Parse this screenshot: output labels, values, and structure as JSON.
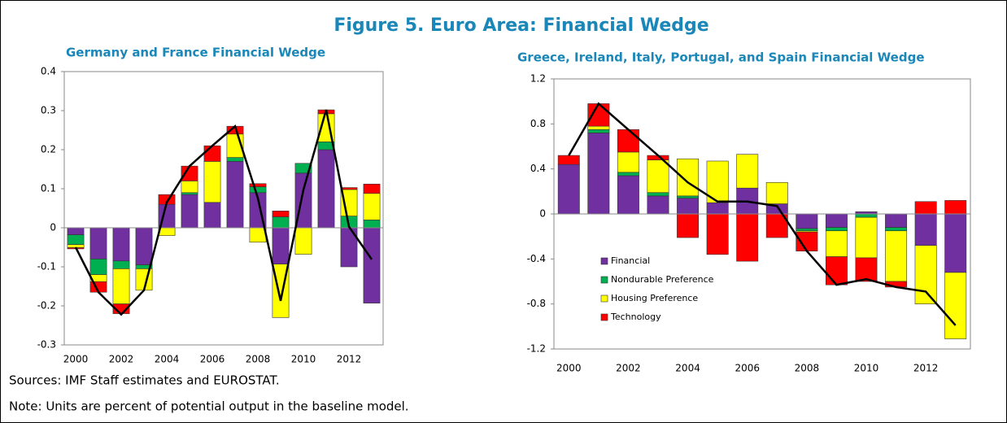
{
  "title": "Figure 5. Euro Area: Financial Wedge",
  "sources": "Sources: IMF Staff estimates and EUROSTAT.",
  "note": "Note: Units are percent of potential output in the baseline model.",
  "chart_data": [
    {
      "type": "bar",
      "stacked": true,
      "title": "Germany and France Financial Wedge",
      "categories": [
        "2000",
        null,
        "2002",
        null,
        "2004",
        null,
        "2006",
        null,
        "2008",
        null,
        "2010",
        null,
        "2012",
        null
      ],
      "series": [
        {
          "color": "#7030a0",
          "values": [
            -0.018,
            -0.08,
            -0.085,
            -0.095,
            0.06,
            0.085,
            0.065,
            0.17,
            0.09,
            -0.093,
            0.14,
            0.2,
            -0.1,
            -0.193
          ]
        },
        {
          "color": "#00b050",
          "values": [
            -0.025,
            -0.04,
            -0.02,
            -0.01,
            0,
            0.005,
            0,
            0.01,
            0.015,
            0.028,
            0.025,
            0.02,
            0.03,
            0.02
          ]
        },
        {
          "color": "#ffff00",
          "values": [
            -0.008,
            -0.018,
            -0.09,
            -0.055,
            -0.02,
            0.03,
            0.105,
            0.06,
            -0.037,
            -0.137,
            -0.068,
            0.072,
            0.068,
            0.068
          ]
        },
        {
          "color": "#ff0000",
          "values": [
            -0.003,
            -0.027,
            -0.025,
            0,
            0.025,
            0.038,
            0.04,
            0.02,
            0.008,
            0.015,
            0,
            0.01,
            0.005,
            0.024
          ]
        }
      ],
      "line": {
        "color": "#000000",
        "values": [
          -0.05,
          -0.165,
          -0.222,
          -0.16,
          0.065,
          0.158,
          0.21,
          0.26,
          0.076,
          -0.187,
          0.097,
          0.302,
          0.003,
          -0.081
        ]
      },
      "ylim": [
        -0.3,
        0.4
      ],
      "yticks": [
        -0.3,
        -0.2,
        -0.1,
        0,
        0.1,
        0.2,
        0.3,
        0.4
      ]
    },
    {
      "type": "bar",
      "stacked": true,
      "title": "Greece, Ireland, Italy, Portugal, and Spain Financial Wedge",
      "categories": [
        "2000",
        null,
        "2002",
        null,
        "2004",
        null,
        "2006",
        null,
        "2008",
        null,
        "2010",
        null,
        "2012",
        null
      ],
      "series": [
        {
          "name": "Financial",
          "color": "#7030a0",
          "values": [
            0.44,
            0.72,
            0.34,
            0.16,
            0.14,
            0.1,
            0.23,
            0.09,
            -0.13,
            -0.12,
            0.02,
            -0.12,
            -0.28,
            -0.52
          ]
        },
        {
          "name": "Nondurable Preference",
          "color": "#00b050",
          "values": [
            0,
            0.03,
            0.03,
            0.03,
            0.02,
            0,
            0,
            0,
            -0.02,
            -0.03,
            -0.03,
            -0.03,
            0,
            0
          ]
        },
        {
          "name": "Housing Preference",
          "color": "#ffff00",
          "values": [
            0,
            0.03,
            0.18,
            0.29,
            0.33,
            0.37,
            0.3,
            0.19,
            -0.01,
            -0.23,
            -0.36,
            -0.45,
            -0.52,
            -0.59
          ]
        },
        {
          "name": "Technology",
          "color": "#ff0000",
          "values": [
            0.08,
            0.2,
            0.2,
            0.04,
            -0.21,
            -0.36,
            -0.42,
            -0.21,
            -0.17,
            -0.25,
            -0.21,
            -0.05,
            0.11,
            0.12
          ]
        }
      ],
      "line": {
        "color": "#000000",
        "values": [
          0.52,
          0.98,
          0.75,
          0.52,
          0.28,
          0.11,
          0.11,
          0.07,
          -0.33,
          -0.63,
          -0.58,
          -0.65,
          -0.69,
          -0.99
        ]
      },
      "ylim": [
        -1.2,
        1.2
      ],
      "yticks": [
        -1.2,
        -0.8,
        -0.4,
        0,
        0.4,
        0.8,
        1.2
      ]
    }
  ]
}
